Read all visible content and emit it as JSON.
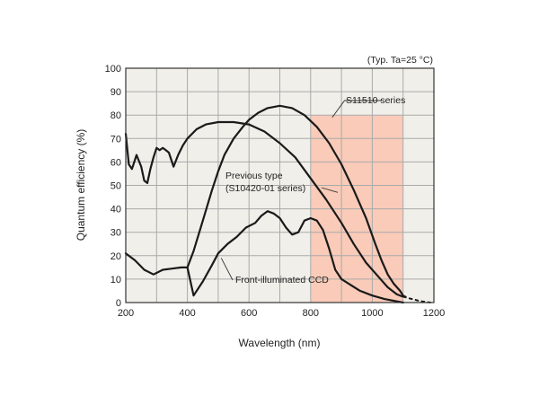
{
  "chart_data": {
    "type": "line",
    "xlabel": "Wavelength (nm)",
    "ylabel": "Quantum efficiency (%)",
    "xlim": [
      200,
      1200
    ],
    "ylim": [
      0,
      100
    ],
    "x_ticks": [
      "200",
      "400",
      "600",
      "800",
      "1000",
      "1200"
    ],
    "x_minor_step": 100,
    "y_ticks": [
      "0",
      "10",
      "20",
      "30",
      "40",
      "50",
      "60",
      "70",
      "80",
      "90",
      "100"
    ],
    "grid": true,
    "note": "(Typ. Ta=25 °C)",
    "highlight_region": {
      "x": [
        800,
        1100
      ],
      "y": [
        0,
        80
      ],
      "color": "#f9cbb8"
    },
    "colors": {
      "plot_bg": "#f0efe9",
      "grid": "#aaaaaa",
      "line": "#1a1a1a"
    },
    "series": [
      {
        "name": "S11510 series",
        "x": [
          400,
          420,
          450,
          480,
          500,
          520,
          550,
          580,
          600,
          630,
          660,
          700,
          740,
          780,
          820,
          860,
          900,
          940,
          980,
          1010,
          1030,
          1050,
          1070,
          1090,
          1100
        ],
        "y": [
          15,
          22,
          35,
          48,
          56,
          63,
          70,
          75,
          78,
          81,
          83,
          84,
          83,
          80,
          75,
          68,
          59,
          48,
          36,
          25,
          18,
          12,
          8,
          5,
          3
        ],
        "tail": {
          "x": [
            1100,
            1120,
            1150,
            1180
          ],
          "y": [
            3,
            1.8,
            0.8,
            0
          ]
        }
      },
      {
        "name": "Previous type (S10420-01 series)",
        "x": [
          200,
          210,
          220,
          235,
          250,
          260,
          270,
          280,
          290,
          300,
          310,
          320,
          330,
          340,
          355,
          370,
          385,
          400,
          430,
          460,
          500,
          550,
          600,
          650,
          700,
          750,
          800,
          850,
          900,
          940,
          980,
          1020,
          1050,
          1080,
          1100
        ],
        "y": [
          72,
          59,
          57,
          63,
          58,
          52,
          51,
          57,
          62,
          66,
          65,
          66,
          65,
          64,
          58,
          63,
          67,
          70,
          74,
          76,
          77,
          77,
          76,
          73,
          68,
          62,
          53,
          44,
          34,
          25,
          17,
          11,
          6.5,
          3.5,
          2.5
        ],
        "tail": {
          "x": [
            1100,
            1130,
            1160,
            1190
          ],
          "y": [
            2.5,
            1.4,
            0.5,
            0
          ]
        }
      },
      {
        "name": "Front-illuminated CCD",
        "x": [
          200,
          230,
          260,
          290,
          320,
          350,
          380,
          400,
          420,
          450,
          480,
          500,
          530,
          560,
          590,
          620,
          640,
          660,
          680,
          700,
          720,
          740,
          760,
          780,
          800,
          820,
          840,
          860,
          880,
          900,
          930,
          960,
          1000,
          1040,
          1080,
          1100
        ],
        "y": [
          21,
          18,
          14,
          12,
          14,
          14.5,
          15,
          15,
          3,
          9,
          16,
          21,
          25,
          28,
          32,
          34,
          37,
          39,
          38,
          36,
          32,
          29,
          30,
          35,
          36,
          35,
          31,
          23,
          14,
          10,
          7.5,
          5,
          3,
          1.5,
          0.5,
          0
        ]
      }
    ],
    "annotations": [
      {
        "text": "S11510 series"
      },
      {
        "text": "Previous type"
      },
      {
        "text": "(S10420-01 series)"
      },
      {
        "text": "Front-illuminated CCD"
      }
    ]
  }
}
